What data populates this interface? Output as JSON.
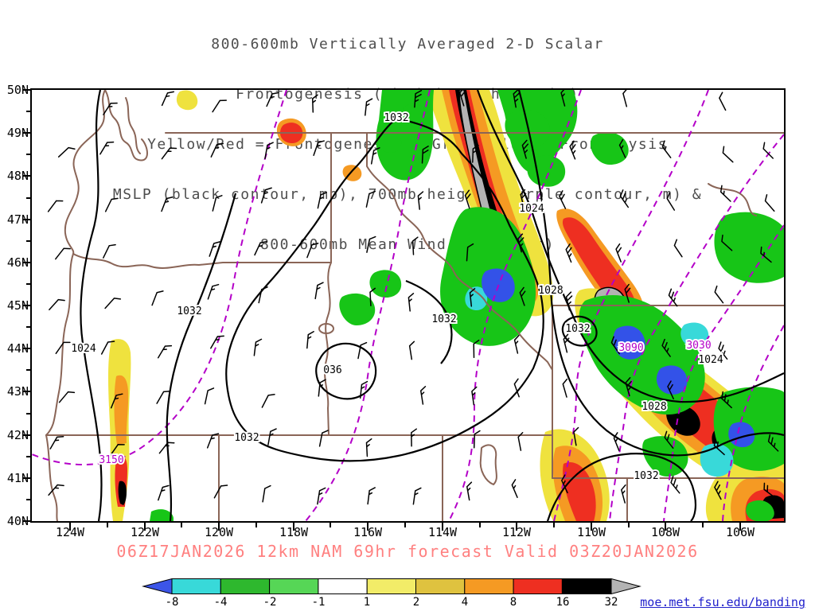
{
  "title": {
    "lines": [
      "800-600mb Vertically Averaged 2-D Scalar",
      "Frontogenesis (shaded, K/6hr/100km)",
      "Yellow/Red = Frontogenesis;  Green/Blue = Frontolysis",
      "MSLP (black contour, mb), 700mb height (purple contour, m) &",
      "800-600mb Mean Wind (barb, kt)"
    ]
  },
  "map": {
    "lat_labels": [
      "50N",
      "49N",
      "48N",
      "47N",
      "46N",
      "45N",
      "44N",
      "43N",
      "42N",
      "41N",
      "40N"
    ],
    "lon_labels": [
      "124W",
      "122W",
      "120W",
      "118W",
      "116W",
      "114W",
      "112W",
      "110W",
      "108W",
      "106W"
    ],
    "contour_labels": [
      {
        "text": "1032",
        "type": "mslp"
      },
      {
        "text": "1024",
        "type": "mslp"
      },
      {
        "text": "1028",
        "type": "mslp"
      },
      {
        "text": "1032",
        "type": "mslp"
      },
      {
        "text": "1032",
        "type": "mslp"
      },
      {
        "text": "3090",
        "type": "height"
      },
      {
        "text": "3030",
        "type": "height"
      },
      {
        "text": "1024",
        "type": "mslp"
      },
      {
        "text": "1028",
        "type": "mslp"
      },
      {
        "text": "1032",
        "type": "mslp"
      },
      {
        "text": "1032",
        "type": "mslp"
      },
      {
        "text": "036",
        "type": "mslp"
      },
      {
        "text": "1024",
        "type": "mslp"
      },
      {
        "text": "1032",
        "type": "mslp"
      },
      {
        "text": "3150",
        "type": "height"
      }
    ]
  },
  "caption": "06Z17JAN2026 12km NAM 69hr forecast Valid 03Z20JAN2026",
  "colorbar": {
    "tick_labels": [
      "-8",
      "-4",
      "-2",
      "-1",
      "1",
      "2",
      "4",
      "8",
      "16",
      "32"
    ],
    "segment_colors": [
      "#38d9d9",
      "#2eb82e",
      "#56d656",
      "#ffffff",
      "#f2ec68",
      "#dfc23f",
      "#f59a23",
      "#ee2f21",
      "#000000"
    ],
    "arrow_left_color": "#3c55e8",
    "arrow_right_color": "#b3b3b3"
  },
  "link": {
    "label": "moe.met.fsu.edu/banding"
  },
  "colors": {
    "title_text": "#4d4d4d",
    "caption_text": "#ff8080",
    "state_border": "#8a6557",
    "height_contour": "#b400c8",
    "mslp_contour": "#000000"
  }
}
